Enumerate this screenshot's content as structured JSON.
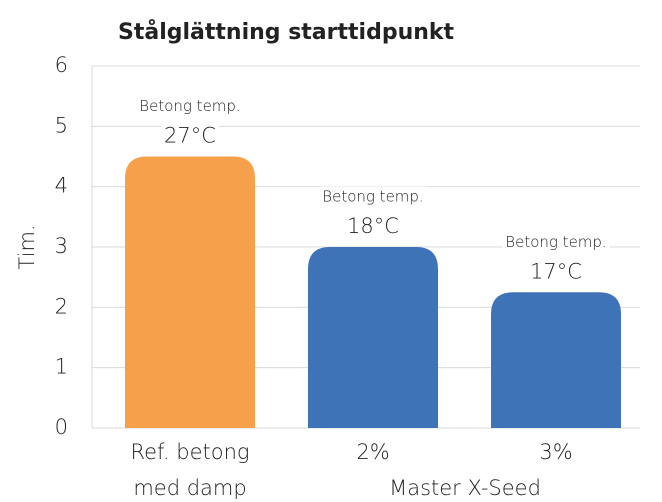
{
  "chart_data": {
    "type": "bar",
    "title": "Stålglättning starttidpunkt",
    "y_label": "Tim.",
    "categories": [
      "Ref. betong med damp",
      "2%",
      "3%"
    ],
    "x_group_label": "Master X-Seed",
    "values": [
      4.5,
      3,
      2.25
    ],
    "colors": [
      "#f7a04b",
      "#3f73b8",
      "#3f73b8"
    ],
    "bar_labels": [
      [
        "Betong temp.",
        "27°C"
      ],
      [
        "Betong temp.",
        "18°C"
      ],
      [
        "Betong temp.",
        "17°C"
      ]
    ],
    "ylim": [
      0,
      6
    ],
    "yticks": [
      0,
      1,
      2,
      3,
      4,
      5,
      6
    ],
    "grid": true
  }
}
